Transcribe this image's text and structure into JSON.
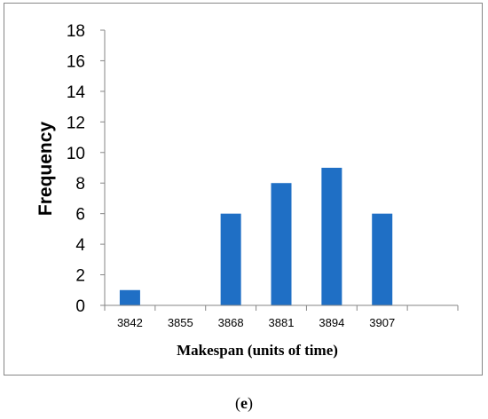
{
  "chart_data": {
    "type": "bar",
    "categories": [
      "3842",
      "3855",
      "3868",
      "3881",
      "3894",
      "3907"
    ],
    "values": [
      1,
      0,
      6,
      8,
      9,
      6
    ],
    "title": "",
    "xlabel": "Makespan (units of time)",
    "ylabel": "Frequency",
    "ylim": [
      0,
      18
    ],
    "yticks": [
      0,
      2,
      4,
      6,
      8,
      10,
      12,
      14,
      16,
      18
    ],
    "grid": false,
    "legend": "none",
    "bar_color": "#1f6fc5"
  },
  "caption": {
    "open": "(",
    "letter": "e",
    "close": ")"
  }
}
